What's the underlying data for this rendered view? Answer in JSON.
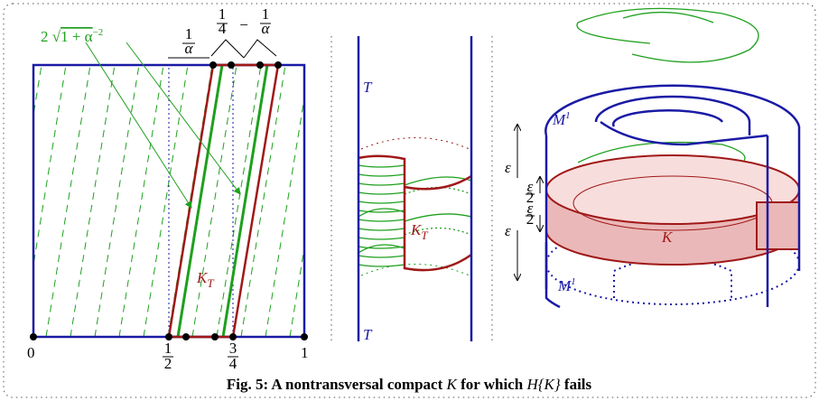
{
  "left": {
    "width_label": {
      "coef": "2",
      "radicand": "1 + α",
      "exp": "−2"
    },
    "gap_label": {
      "num": "1",
      "den": "α"
    },
    "diff_label": {
      "a": {
        "num": "1",
        "den": "4"
      },
      "op": "−",
      "b": {
        "num": "1",
        "den": "α"
      }
    },
    "axis": {
      "zero": "0",
      "half": {
        "num": "1",
        "den": "2"
      },
      "three_quarters": {
        "num": "3",
        "den": "4"
      },
      "one": "1"
    },
    "kt": {
      "base": "K",
      "sub": "T"
    }
  },
  "middle": {
    "t_top": "T",
    "t_bottom": "T",
    "kt": {
      "base": "K",
      "sub": "T"
    }
  },
  "right": {
    "m_top": {
      "base": "M",
      "sup": "1"
    },
    "m_bottom": {
      "base": "M",
      "sup": "1"
    },
    "eps_top": "ε",
    "half_top": {
      "num": "ε",
      "den": "2"
    },
    "half_bottom": {
      "num": "ε",
      "den": "2"
    },
    "eps_bottom": "ε",
    "k": "K"
  },
  "caption": {
    "prefix": "Fig. 5: A nontransversal compact ",
    "k": "K",
    "mid": " for which ",
    "h": "H{K}",
    "suffix": " fails"
  }
}
